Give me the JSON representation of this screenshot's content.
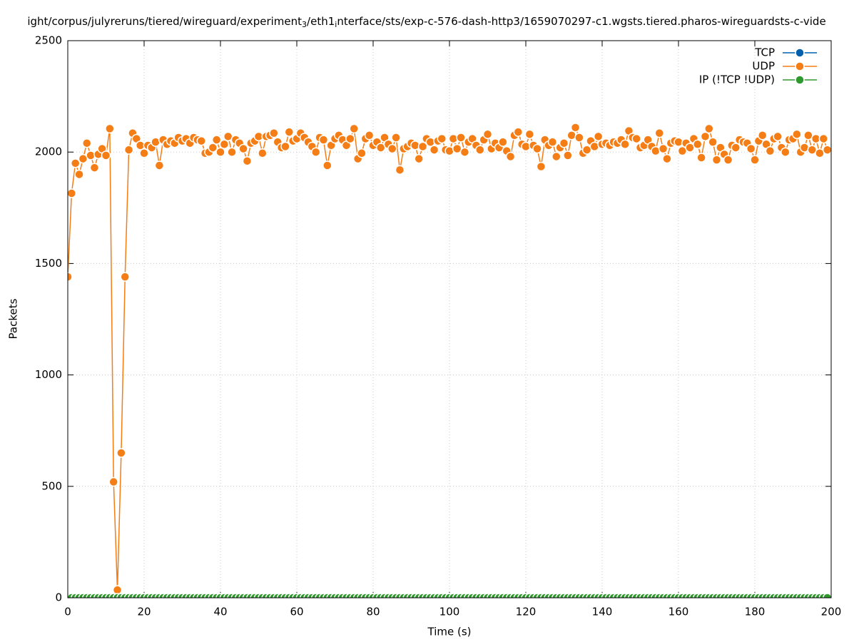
{
  "chart_data": {
    "type": "line",
    "title": [
      "ight/corpus/julyreruns/tiered/wireguard/experiment",
      "3",
      "/eth1",
      "i",
      "nterface/sts/exp-c-576-dash-http3/1659070297-c1.wgsts.tiered.pharos-wireguardsts-c-vide"
    ],
    "xlabel": "Time (s)",
    "ylabel": "Packets",
    "xlim": [
      0,
      200
    ],
    "ylim": [
      0,
      2500
    ],
    "xticks": [
      0,
      20,
      40,
      60,
      80,
      100,
      120,
      140,
      160,
      180,
      200
    ],
    "yticks": [
      0,
      500,
      1000,
      1500,
      2000,
      2500
    ],
    "grid": true,
    "legend": "top-right",
    "x": [
      0,
      1,
      2,
      3,
      4,
      5,
      6,
      7,
      8,
      9,
      10,
      11,
      12,
      13,
      14,
      15,
      16,
      17,
      18,
      19,
      20,
      21,
      22,
      23,
      24,
      25,
      26,
      27,
      28,
      29,
      30,
      31,
      32,
      33,
      34,
      35,
      36,
      37,
      38,
      39,
      40,
      41,
      42,
      43,
      44,
      45,
      46,
      47,
      48,
      49,
      50,
      51,
      52,
      53,
      54,
      55,
      56,
      57,
      58,
      59,
      60,
      61,
      62,
      63,
      64,
      65,
      66,
      67,
      68,
      69,
      70,
      71,
      72,
      73,
      74,
      75,
      76,
      77,
      78,
      79,
      80,
      81,
      82,
      83,
      84,
      85,
      86,
      87,
      88,
      89,
      90,
      91,
      92,
      93,
      94,
      95,
      96,
      97,
      98,
      99,
      100,
      101,
      102,
      103,
      104,
      105,
      106,
      107,
      108,
      109,
      110,
      111,
      112,
      113,
      114,
      115,
      116,
      117,
      118,
      119,
      120,
      121,
      122,
      123,
      124,
      125,
      126,
      127,
      128,
      129,
      130,
      131,
      132,
      133,
      134,
      135,
      136,
      137,
      138,
      139,
      140,
      141,
      142,
      143,
      144,
      145,
      146,
      147,
      148,
      149,
      150,
      151,
      152,
      153,
      154,
      155,
      156,
      157,
      158,
      159,
      160,
      161,
      162,
      163,
      164,
      165,
      166,
      167,
      168,
      169,
      170,
      171,
      172,
      173,
      174,
      175,
      176,
      177,
      178,
      179,
      180,
      181,
      182,
      183,
      184,
      185,
      186,
      187,
      188,
      189,
      190,
      191,
      192,
      193,
      194,
      195,
      196,
      197,
      198,
      199
    ],
    "series": [
      {
        "name": "TCP",
        "color": "#0060ad",
        "values": [
          0,
          0,
          0,
          0,
          0,
          0,
          0,
          0,
          0,
          0,
          0,
          0,
          0,
          0,
          0,
          0,
          0,
          0,
          0,
          0,
          0,
          0,
          0,
          0,
          0,
          0,
          0,
          0,
          0,
          0,
          0,
          0,
          0,
          0,
          0,
          0,
          0,
          0,
          0,
          0,
          0,
          0,
          0,
          0,
          0,
          0,
          0,
          0,
          0,
          0,
          0,
          0,
          0,
          0,
          0,
          0,
          0,
          0,
          0,
          0,
          0,
          0,
          0,
          0,
          0,
          0,
          0,
          0,
          0,
          0,
          0,
          0,
          0,
          0,
          0,
          0,
          0,
          0,
          0,
          0,
          0,
          0,
          0,
          0,
          0,
          0,
          0,
          0,
          0,
          0,
          0,
          0,
          0,
          0,
          0,
          0,
          0,
          0,
          0,
          0,
          0,
          0,
          0,
          0,
          0,
          0,
          0,
          0,
          0,
          0,
          0,
          0,
          0,
          0,
          0,
          0,
          0,
          0,
          0,
          0,
          0,
          0,
          0,
          0,
          0,
          0,
          0,
          0,
          0,
          0,
          0,
          0,
          0,
          0,
          0,
          0,
          0,
          0,
          0,
          0,
          0,
          0,
          0,
          0,
          0,
          0,
          0,
          0,
          0,
          0,
          0,
          0,
          0,
          0,
          0,
          0,
          0,
          0,
          0,
          0,
          0,
          0,
          0,
          0,
          0,
          0,
          0,
          0,
          0,
          0,
          0,
          0,
          0,
          0,
          0,
          0,
          0,
          0,
          0,
          0,
          0,
          0,
          0,
          0,
          0,
          0,
          0,
          0,
          0,
          0,
          0,
          0,
          0,
          0,
          0,
          0,
          0,
          0,
          0,
          0
        ]
      },
      {
        "name": "UDP",
        "color": "#f57d15",
        "values": [
          1440,
          1815,
          1950,
          1900,
          1970,
          2040,
          1985,
          1930,
          1990,
          2015,
          1985,
          2105,
          520,
          35,
          650,
          1440,
          2010,
          2085,
          2060,
          2030,
          1995,
          2030,
          2020,
          2045,
          1940,
          2055,
          2035,
          2050,
          2040,
          2065,
          2050,
          2060,
          2040,
          2065,
          2055,
          2050,
          1995,
          2000,
          2020,
          2055,
          2000,
          2035,
          2070,
          2000,
          2055,
          2040,
          2015,
          1960,
          2040,
          2050,
          2070,
          1995,
          2070,
          2075,
          2085,
          2045,
          2020,
          2025,
          2090,
          2050,
          2060,
          2085,
          2065,
          2045,
          2025,
          2000,
          2065,
          2055,
          1940,
          2030,
          2060,
          2075,
          2055,
          2030,
          2060,
          2105,
          1970,
          1995,
          2060,
          2075,
          2030,
          2045,
          2020,
          2065,
          2035,
          2015,
          2065,
          1920,
          2015,
          2025,
          2040,
          2030,
          1970,
          2025,
          2060,
          2045,
          2010,
          2050,
          2060,
          2010,
          2005,
          2060,
          2015,
          2065,
          2000,
          2045,
          2060,
          2030,
          2010,
          2055,
          2080,
          2015,
          2040,
          2020,
          2045,
          2005,
          1980,
          2075,
          2090,
          2035,
          2025,
          2080,
          2030,
          2015,
          1935,
          2055,
          2030,
          2045,
          1980,
          2020,
          2040,
          1985,
          2075,
          2110,
          2065,
          1995,
          2010,
          2050,
          2025,
          2070,
          2035,
          2040,
          2030,
          2045,
          2040,
          2055,
          2035,
          2095,
          2065,
          2060,
          2020,
          2030,
          2055,
          2025,
          2005,
          2085,
          2015,
          1970,
          2040,
          2050,
          2045,
          2005,
          2040,
          2020,
          2060,
          2035,
          1975,
          2070,
          2105,
          2045,
          1965,
          2020,
          1990,
          1965,
          2030,
          2020,
          2055,
          2045,
          2040,
          2015,
          1965,
          2050,
          2075,
          2035,
          2005,
          2060,
          2070,
          2020,
          2000,
          2055,
          2060,
          2080,
          2000,
          2020,
          2075,
          2010,
          2060,
          1995,
          2060,
          2010
        ]
      },
      {
        "name": "IP (!TCP  !UDP)",
        "color": "#2e9a2e",
        "values": [
          0,
          0,
          0,
          0,
          0,
          0,
          0,
          0,
          0,
          0,
          0,
          0,
          0,
          0,
          0,
          0,
          0,
          0,
          0,
          0,
          0,
          0,
          0,
          0,
          0,
          0,
          0,
          0,
          0,
          0,
          0,
          0,
          0,
          0,
          0,
          0,
          0,
          0,
          0,
          0,
          0,
          0,
          0,
          0,
          0,
          0,
          0,
          0,
          0,
          0,
          0,
          0,
          0,
          0,
          0,
          0,
          0,
          0,
          0,
          0,
          0,
          0,
          0,
          0,
          0,
          0,
          0,
          0,
          0,
          0,
          0,
          0,
          0,
          0,
          0,
          0,
          0,
          0,
          0,
          0,
          0,
          0,
          0,
          0,
          0,
          0,
          0,
          0,
          0,
          0,
          0,
          0,
          0,
          0,
          0,
          0,
          0,
          0,
          0,
          0,
          0,
          0,
          0,
          0,
          0,
          0,
          0,
          0,
          0,
          0,
          0,
          0,
          0,
          0,
          0,
          0,
          0,
          0,
          0,
          0,
          0,
          0,
          0,
          0,
          0,
          0,
          0,
          0,
          0,
          0,
          0,
          0,
          0,
          0,
          0,
          0,
          0,
          0,
          0,
          0,
          0,
          0,
          0,
          0,
          0,
          0,
          0,
          0,
          0,
          0,
          0,
          0,
          0,
          0,
          0,
          0,
          0,
          0,
          0,
          0,
          0,
          0,
          0,
          0,
          0,
          0,
          0,
          0,
          0,
          0,
          0,
          0,
          0,
          0,
          0,
          0,
          0,
          0,
          0,
          0,
          0,
          0,
          0,
          0,
          0,
          0,
          0,
          0,
          0,
          0,
          0,
          0,
          0,
          0,
          0,
          0,
          0,
          0,
          0,
          0
        ]
      }
    ]
  }
}
